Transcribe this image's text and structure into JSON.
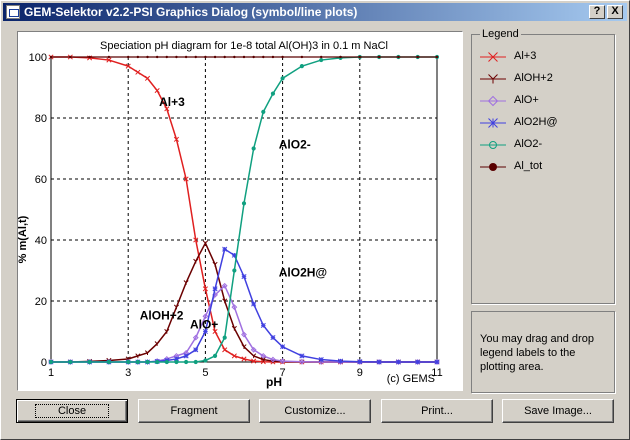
{
  "window": {
    "title": "GEM-Selektor v2.2-PSI Graphics Dialog (symbol/line plots)",
    "help_label": "?",
    "close_label": "X"
  },
  "chart_data": {
    "type": "line",
    "title": "Speciation pH diagram for 1e-8 total Al(OH)3 in 0.1 m NaCl",
    "xlabel": "pH",
    "ylabel": "% m(Al,t)",
    "xlim": [
      1,
      11
    ],
    "ylim": [
      0,
      100
    ],
    "xticks": [
      "1",
      "3",
      "5",
      "7",
      "9",
      "11"
    ],
    "yticks": [
      "0",
      "20",
      "40",
      "60",
      "80",
      "100"
    ],
    "grid": true,
    "grid_style": "dashed",
    "legend_placement": "right panel",
    "copyright": "(c) GEMS",
    "x": [
      1.0,
      1.5,
      2.0,
      2.5,
      3.0,
      3.25,
      3.5,
      3.75,
      4.0,
      4.25,
      4.5,
      4.75,
      5.0,
      5.25,
      5.5,
      5.75,
      6.0,
      6.25,
      6.5,
      6.75,
      7.0,
      7.5,
      8.0,
      8.5,
      9.0,
      9.5,
      10.0,
      10.5,
      11.0
    ],
    "series": [
      {
        "name": "Al+3",
        "color": "#e02020",
        "marker": "x",
        "values": [
          100,
          100,
          99.7,
          99,
          97,
          95,
          93,
          89,
          83,
          73,
          60,
          40,
          24,
          10,
          4,
          2,
          1,
          0.3,
          0.1,
          0,
          0,
          0,
          0,
          0,
          0,
          0,
          0,
          0,
          0
        ]
      },
      {
        "name": "AlOH+2",
        "color": "#6b0000",
        "marker": "y",
        "values": [
          0,
          0,
          0.2,
          0.5,
          1,
          2,
          3,
          6,
          10,
          18,
          26,
          33,
          39,
          32,
          20,
          11,
          5,
          2,
          0.8,
          0.3,
          0.1,
          0,
          0,
          0,
          0,
          0,
          0,
          0,
          0
        ]
      },
      {
        "name": "AlO+",
        "color": "#a070e0",
        "marker": "diamond",
        "values": [
          0,
          0,
          0,
          0,
          0,
          0,
          0,
          0.3,
          1,
          2,
          3,
          8,
          15,
          22,
          25,
          18,
          9,
          4,
          2,
          0.8,
          0.3,
          0.1,
          0,
          0,
          0,
          0,
          0,
          0,
          0
        ]
      },
      {
        "name": "AlO2H@",
        "color": "#4040e0",
        "marker": "star",
        "values": [
          0,
          0,
          0,
          0,
          0,
          0,
          0,
          0.2,
          0.5,
          1,
          2,
          4,
          10,
          24,
          37,
          35,
          28,
          19,
          12,
          8,
          5,
          2,
          0.8,
          0.3,
          0.1,
          0,
          0,
          0,
          0
        ]
      },
      {
        "name": "AlO2-",
        "color": "#10a080",
        "marker": "circle",
        "values": [
          0,
          0,
          0,
          0,
          0,
          0,
          0,
          0,
          0,
          0,
          0,
          0,
          0.5,
          2,
          8,
          30,
          52,
          70,
          82,
          88,
          93,
          97,
          99,
          99.7,
          100,
          100,
          100,
          100,
          100
        ]
      },
      {
        "name": "Al_tot",
        "color": "#5a0000",
        "marker": "dot",
        "values": [
          100,
          100,
          100,
          100,
          100,
          100,
          100,
          100,
          100,
          100,
          100,
          100,
          100,
          100,
          100,
          100,
          100,
          100,
          100,
          100,
          100,
          100,
          100,
          100,
          100,
          100,
          100,
          100,
          100
        ]
      }
    ],
    "annotations": [
      {
        "text": "Al+3",
        "x": 3.8,
        "y": 84
      },
      {
        "text": "AlO2-",
        "x": 6.9,
        "y": 70
      },
      {
        "text": "AlO2H@",
        "x": 6.9,
        "y": 28
      },
      {
        "text": "AlOH+2",
        "x": 3.3,
        "y": 14
      },
      {
        "text": "AlO+",
        "x": 4.6,
        "y": 11
      }
    ]
  },
  "legend": {
    "title": "Legend",
    "items": [
      {
        "label": "Al+3",
        "color": "#e02020",
        "marker": "x"
      },
      {
        "label": "AlOH+2",
        "color": "#6b0000",
        "marker": "y"
      },
      {
        "label": "AlO+",
        "color": "#a070e0",
        "marker": "diamond"
      },
      {
        "label": "AlO2H@",
        "color": "#4040e0",
        "marker": "star"
      },
      {
        "label": "AlO2-",
        "color": "#10a080",
        "marker": "circle"
      },
      {
        "label": "Al_tot",
        "color": "#5a0000",
        "marker": "dot"
      }
    ]
  },
  "hint": "You may drag and drop legend labels to the plotting area.",
  "buttons": {
    "close": "Close",
    "fragment": "Fragment",
    "customize": "Customize...",
    "print": "Print...",
    "save_image": "Save Image..."
  }
}
